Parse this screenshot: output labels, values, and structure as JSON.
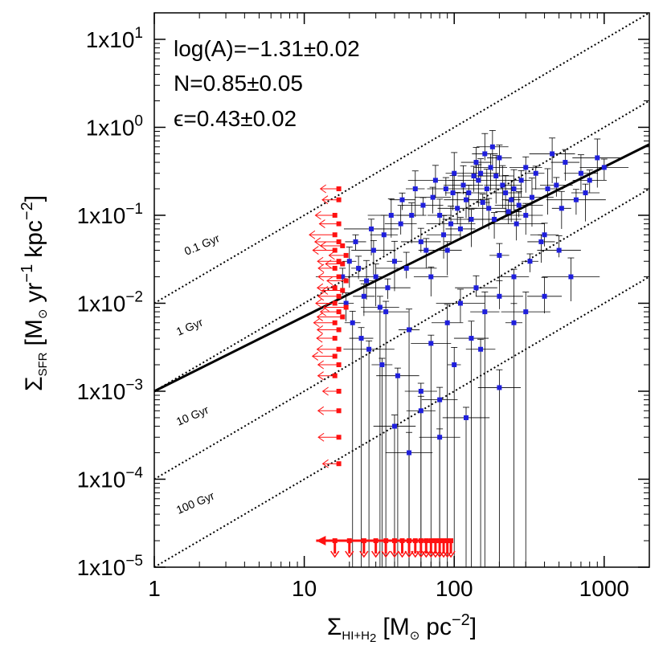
{
  "chart_data": {
    "type": "scatter",
    "x_scale": "log",
    "y_scale": "log",
    "xlim": [
      1,
      2000
    ],
    "ylim": [
      1e-05,
      20
    ],
    "x_ticks": [
      {
        "value": 1,
        "label": "1"
      },
      {
        "value": 10,
        "label": "10"
      },
      {
        "value": 100,
        "label": "100"
      },
      {
        "value": 1000,
        "label": "1000"
      }
    ],
    "y_ticks": [
      {
        "value": 1e-05,
        "mantissa": "1x10",
        "exponent": "−5"
      },
      {
        "value": 0.0001,
        "mantissa": "1x10",
        "exponent": "−4"
      },
      {
        "value": 0.001,
        "mantissa": "1x10",
        "exponent": "−3"
      },
      {
        "value": 0.01,
        "mantissa": "1x10",
        "exponent": "−2"
      },
      {
        "value": 0.1,
        "mantissa": "1x10",
        "exponent": "−1"
      },
      {
        "value": 1,
        "mantissa": "1x10",
        "exponent": "0"
      },
      {
        "value": 10,
        "mantissa": "1x10",
        "exponent": "1"
      }
    ],
    "xlabel": {
      "symbol": "Σ",
      "sub": "HI+H",
      "sub2": "2",
      "unit": "[M",
      "sun": "⊙",
      "unit2": "pc",
      "exp": "−2",
      "close": "]"
    },
    "ylabel": {
      "symbol": "Σ",
      "sub": "SFR",
      "unit": "[M",
      "sun": "⊙",
      "yr": "yr",
      "yr_exp": "−1",
      "kpc": "kpc",
      "kpc_exp": "−2",
      "close": "]"
    },
    "annotations": {
      "line1": "log(A)=−1.31±0.02",
      "line2": "N=0.85±0.05",
      "line3": "ϵ=0.43±0.02"
    },
    "fit_line": {
      "logA": -3.0,
      "slope": 0.85,
      "color": "#000000"
    },
    "depletion_lines": [
      {
        "label": "0.1 Gyr",
        "intercept": 0.01
      },
      {
        "label": "1 Gyr",
        "intercept": 0.001
      },
      {
        "label": "10 Gyr",
        "intercept": 0.0001
      },
      {
        "label": "100 Gyr",
        "intercept": 1e-05
      }
    ],
    "colors": {
      "detections": "#1f1fdd",
      "upper_limits": "#ff1111",
      "errorbars": "#000000"
    },
    "series": [
      {
        "name": "detections",
        "points": [
          [
            150,
            0.3
          ],
          [
            200,
            0.45
          ],
          [
            250,
            0.2
          ],
          [
            300,
            0.35
          ],
          [
            120,
            0.15
          ],
          [
            80,
            0.1
          ],
          [
            60,
            0.05
          ],
          [
            40,
            0.03
          ],
          [
            30,
            0.02
          ],
          [
            25,
            0.012
          ],
          [
            35,
            0.008
          ],
          [
            50,
            0.005
          ],
          [
            70,
            0.02
          ],
          [
            90,
            0.04
          ],
          [
            110,
            0.07
          ],
          [
            130,
            0.09
          ],
          [
            170,
            0.12
          ],
          [
            220,
            0.18
          ],
          [
            280,
            0.25
          ],
          [
            350,
            0.3
          ],
          [
            450,
            0.5
          ],
          [
            550,
            0.4
          ],
          [
            700,
            0.3
          ],
          [
            800,
            0.25
          ],
          [
            1000,
            0.35
          ],
          [
            900,
            0.45
          ],
          [
            600,
            0.02
          ],
          [
            500,
            0.04
          ],
          [
            400,
            0.06
          ],
          [
            180,
            0.6
          ],
          [
            160,
            0.5
          ],
          [
            140,
            0.4
          ],
          [
            100,
            0.3
          ],
          [
            75,
            0.25
          ],
          [
            55,
            0.2
          ],
          [
            45,
            0.15
          ],
          [
            38,
            0.1
          ],
          [
            28,
            0.07
          ],
          [
            22,
            0.05
          ],
          [
            20,
            0.03
          ],
          [
            18,
            0.02
          ],
          [
            19,
            0.01
          ],
          [
            21,
            0.006
          ],
          [
            24,
            0.004
          ],
          [
            27,
            0.003
          ],
          [
            33,
            0.002
          ],
          [
            42,
            0.0015
          ],
          [
            60,
            0.001
          ],
          [
            80,
            0.0008
          ],
          [
            100,
            0.002
          ],
          [
            130,
            0.004
          ],
          [
            160,
            0.008
          ],
          [
            200,
            0.012
          ],
          [
            250,
            0.02
          ],
          [
            320,
            0.03
          ],
          [
            380,
            0.05
          ],
          [
            300,
            0.1
          ],
          [
            260,
            0.08
          ],
          [
            240,
            0.15
          ],
          [
            210,
            0.22
          ],
          [
            190,
            0.28
          ],
          [
            175,
            0.35
          ],
          [
            165,
            0.2
          ],
          [
            145,
            0.25
          ],
          [
            125,
            0.18
          ],
          [
            105,
            0.12
          ],
          [
            95,
            0.08
          ],
          [
            85,
            0.06
          ],
          [
            65,
            0.04
          ],
          [
            48,
            0.025
          ],
          [
            36,
            0.015
          ],
          [
            32,
            0.009
          ],
          [
            26,
            0.018
          ],
          [
            23,
            0.025
          ],
          [
            29,
            0.04
          ],
          [
            34,
            0.06
          ],
          [
            44,
            0.08
          ],
          [
            52,
            0.1
          ],
          [
            62,
            0.13
          ],
          [
            72,
            0.16
          ],
          [
            88,
            0.2
          ],
          [
            98,
            0.18
          ],
          [
            115,
            0.22
          ],
          [
            135,
            0.28
          ],
          [
            155,
            0.14
          ],
          [
            185,
            0.09
          ],
          [
            230,
            0.11
          ],
          [
            270,
            0.13
          ],
          [
            330,
            0.16
          ],
          [
            420,
            0.2
          ],
          [
            480,
            0.22
          ],
          [
            520,
            0.12
          ],
          [
            650,
            0.15
          ],
          [
            750,
            0.18
          ],
          [
            200,
            0.0011
          ],
          [
            120,
            0.0005
          ],
          [
            80,
            0.0003
          ],
          [
            50,
            0.0002
          ],
          [
            40,
            0.0004
          ],
          [
            60,
            0.0006
          ],
          [
            70,
            0.0035
          ],
          [
            90,
            0.006
          ],
          [
            110,
            0.01
          ],
          [
            140,
            0.015
          ],
          [
            200,
            0.035
          ],
          [
            300,
            0.008
          ],
          [
            400,
            0.012
          ],
          [
            250,
            0.006
          ],
          [
            150,
            0.003
          ]
        ]
      },
      {
        "name": "upper_limits",
        "points": [
          [
            17,
            0.2
          ],
          [
            17,
            0.15
          ],
          [
            16,
            0.1
          ],
          [
            17,
            0.08
          ],
          [
            16,
            0.06
          ],
          [
            17,
            0.05
          ],
          [
            16,
            0.04
          ],
          [
            17,
            0.03
          ],
          [
            16,
            0.025
          ],
          [
            17,
            0.02
          ],
          [
            16,
            0.015
          ],
          [
            17,
            0.012
          ],
          [
            16,
            0.01
          ],
          [
            17,
            0.008
          ],
          [
            16,
            0.006
          ],
          [
            17,
            0.005
          ],
          [
            16,
            0.004
          ],
          [
            17,
            0.003
          ],
          [
            16,
            0.0025
          ],
          [
            17,
            0.002
          ],
          [
            16,
            0.0015
          ],
          [
            17,
            0.001
          ],
          [
            17,
            0.0006
          ],
          [
            17,
            0.0003
          ],
          [
            17,
            0.00015
          ],
          [
            18,
            0.045
          ],
          [
            19,
            0.035
          ],
          [
            18,
            0.028
          ],
          [
            19,
            0.018
          ],
          [
            18,
            0.014
          ],
          [
            19,
            0.009
          ],
          [
            18,
            0.007
          ]
        ]
      },
      {
        "name": "bottom_upper_limits",
        "points": [
          [
            16,
            2e-05
          ],
          [
            20,
            2e-05
          ],
          [
            25,
            2e-05
          ],
          [
            30,
            2e-05
          ],
          [
            35,
            2e-05
          ],
          [
            40,
            2e-05
          ],
          [
            45,
            2e-05
          ],
          [
            50,
            2e-05
          ],
          [
            55,
            2e-05
          ],
          [
            60,
            2e-05
          ],
          [
            65,
            2e-05
          ],
          [
            70,
            2e-05
          ],
          [
            75,
            2e-05
          ],
          [
            80,
            2e-05
          ],
          [
            85,
            2e-05
          ],
          [
            90,
            2e-05
          ],
          [
            95,
            2e-05
          ]
        ]
      }
    ]
  }
}
